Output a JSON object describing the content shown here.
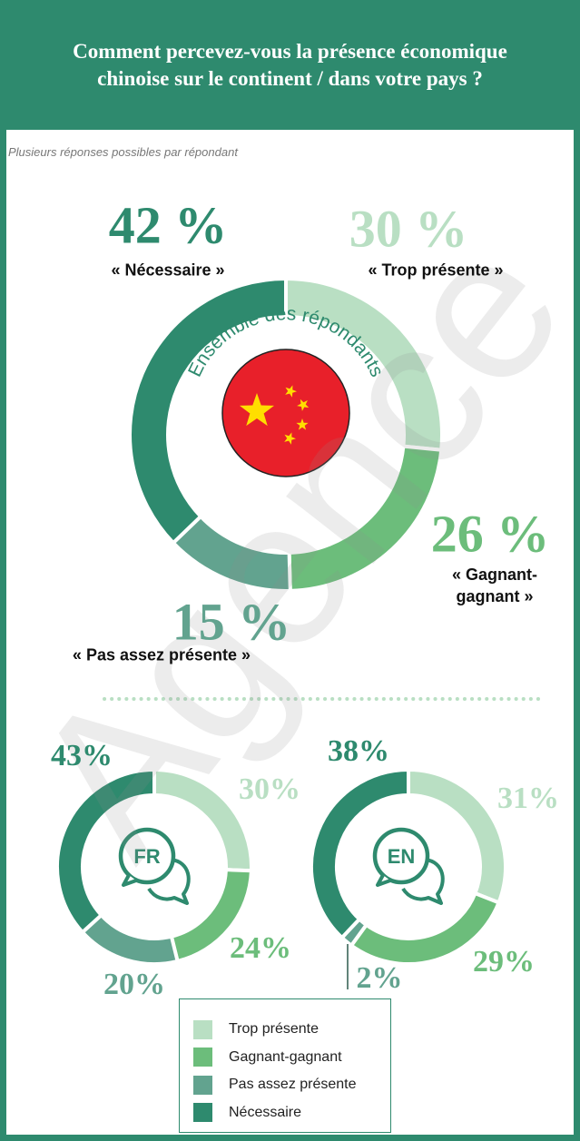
{
  "header": {
    "title": "Comment percevez-vous la présence économique chinoise sur le continent / dans votre pays ?",
    "subtitle": "Plusieurs réponses possibles par répondant"
  },
  "watermark": "Agence",
  "legend": {
    "items": [
      {
        "name": "Trop présente",
        "color": "#b9dfc3"
      },
      {
        "name": "Gagnant-gagnant",
        "color": "#6cbd7b"
      },
      {
        "name": "Pas assez présente",
        "color": "#62a38f"
      },
      {
        "name": "Nécessaire",
        "color": "#2e8a6e"
      }
    ]
  },
  "chart_data": [
    {
      "type": "donut",
      "center_label": "Ensemble des répondants",
      "categories": [
        "« Trop présente »",
        "« Gagnant-gagnant »",
        "« Pas assez présente »",
        "« Nécessaire »"
      ],
      "values": [
        30,
        26,
        15,
        42
      ],
      "value_labels": [
        "30 %",
        "26 %",
        "15 %",
        "42 %"
      ],
      "colors": [
        "#b9dfc3",
        "#6cbd7b",
        "#62a38f",
        "#2e8a6e"
      ]
    },
    {
      "type": "donut",
      "center_label": "FR",
      "values": [
        30,
        24,
        20,
        43
      ],
      "value_labels": [
        "30%",
        "24%",
        "20%",
        "43%"
      ],
      "colors": [
        "#b9dfc3",
        "#6cbd7b",
        "#62a38f",
        "#2e8a6e"
      ]
    },
    {
      "type": "donut",
      "center_label": "EN",
      "values": [
        31,
        29,
        2,
        38
      ],
      "value_labels": [
        "31%",
        "29%",
        "2%",
        "38%"
      ],
      "colors": [
        "#b9dfc3",
        "#6cbd7b",
        "#62a38f",
        "#2e8a6e"
      ]
    }
  ]
}
